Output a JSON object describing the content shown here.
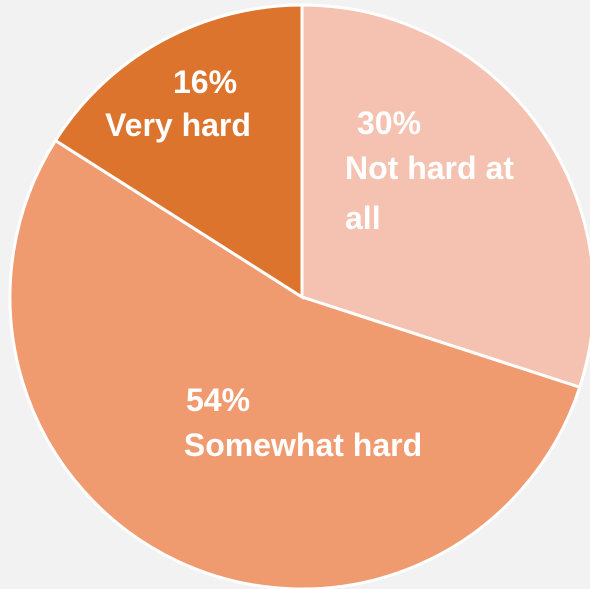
{
  "chart_data": {
    "type": "pie",
    "categories": [
      "Not hard at all",
      "Somewhat hard",
      "Very hard"
    ],
    "values": [
      30,
      54,
      16
    ],
    "value_labels": [
      "30%",
      "54%",
      "16%"
    ],
    "colors": [
      "#f5c1b0",
      "#f09a70",
      "#dc742e"
    ]
  }
}
